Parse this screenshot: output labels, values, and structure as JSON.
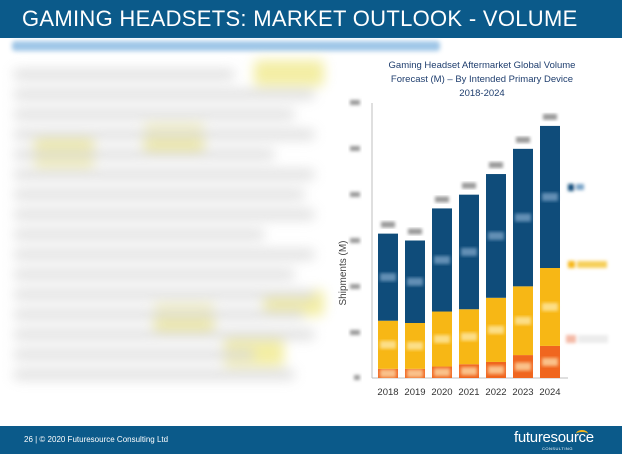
{
  "slide": {
    "title": "GAMING HEADSETS: MARKET OUTLOOK - VOLUME",
    "footer_text": "26 | © 2020 Futuresource Consulting Ltd",
    "logo_text": "futuresource",
    "logo_subtext": "CONSULTING"
  },
  "colors": {
    "title_bar": "#0b5a8a",
    "series_top": "#0f4c7a",
    "series_middle": "#f7b715",
    "series_bottom": "#f0661f",
    "chart_title": "#1f3e6e"
  },
  "chart_data": {
    "type": "bar",
    "stacked": true,
    "title_lines": [
      "Gaming Headset Aftermarket Global Volume",
      "Forecast (M) – By Intended Primary Device",
      "2018-2024"
    ],
    "ylabel": "Shipments (M)",
    "categories": [
      "2018",
      "2019",
      "2020",
      "2021",
      "2022",
      "2023",
      "2024"
    ],
    "ylim": [
      0,
      120
    ],
    "series": [
      {
        "values": [
          4,
          4,
          5,
          6,
          7,
          10,
          14
        ]
      },
      {
        "values": [
          21,
          20,
          24,
          24,
          28,
          30,
          34
        ]
      },
      {
        "values": [
          38,
          36,
          45,
          50,
          54,
          60,
          62
        ]
      }
    ],
    "legend_position": "right"
  }
}
